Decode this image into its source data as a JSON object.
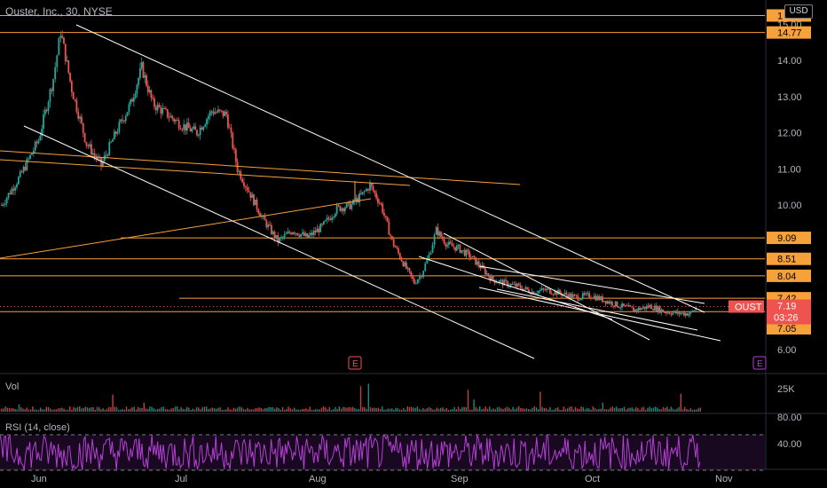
{
  "header": {
    "title": "Ouster, Inc., 30, NYSE",
    "currency": "USD"
  },
  "colors": {
    "bg": "#000000",
    "orange": "#f7a13b",
    "white": "#ffffff",
    "up": "#26a69a",
    "down": "#ef5350",
    "rsi": "#b53fd6",
    "axis": "#b2b5be"
  },
  "chart_data": {
    "type": "candlestick",
    "ticker": "OUST",
    "price_axis": {
      "min": 5.75,
      "max": 15.25,
      "ticks": [
        "15.00",
        "14.00",
        "13.00",
        "12.00",
        "11.00",
        "10.00",
        "6.00"
      ]
    },
    "date_axis": [
      "Jun",
      "Jul",
      "Aug",
      "Sep",
      "Oct",
      "Nov"
    ],
    "price_path": [
      {
        "d": 0,
        "p": 10.0
      },
      {
        "d": 5,
        "p": 10.8
      },
      {
        "d": 10,
        "p": 11.8
      },
      {
        "d": 14,
        "p": 13.5
      },
      {
        "d": 16,
        "p": 14.8
      },
      {
        "d": 19,
        "p": 13.2
      },
      {
        "d": 23,
        "p": 11.7
      },
      {
        "d": 27,
        "p": 11.1
      },
      {
        "d": 31,
        "p": 12.0
      },
      {
        "d": 35,
        "p": 12.8
      },
      {
        "d": 38,
        "p": 13.8
      },
      {
        "d": 41,
        "p": 12.8
      },
      {
        "d": 45,
        "p": 12.5
      },
      {
        "d": 49,
        "p": 12.2
      },
      {
        "d": 53,
        "p": 12.0
      },
      {
        "d": 57,
        "p": 12.6
      },
      {
        "d": 61,
        "p": 12.5
      },
      {
        "d": 64,
        "p": 11.0
      },
      {
        "d": 68,
        "p": 10.2
      },
      {
        "d": 71,
        "p": 9.6
      },
      {
        "d": 75,
        "p": 9.0
      },
      {
        "d": 79,
        "p": 9.3
      },
      {
        "d": 83,
        "p": 9.1
      },
      {
        "d": 87,
        "p": 9.4
      },
      {
        "d": 91,
        "p": 9.9
      },
      {
        "d": 95,
        "p": 10.0
      },
      {
        "d": 98,
        "p": 10.3
      },
      {
        "d": 100,
        "p": 10.55
      },
      {
        "d": 103,
        "p": 10.0
      },
      {
        "d": 106,
        "p": 9.0
      },
      {
        "d": 109,
        "p": 8.4
      },
      {
        "d": 112,
        "p": 7.85
      },
      {
        "d": 114,
        "p": 8.1
      },
      {
        "d": 116,
        "p": 8.6
      },
      {
        "d": 118,
        "p": 9.3
      },
      {
        "d": 121,
        "p": 8.9
      },
      {
        "d": 124,
        "p": 8.8
      },
      {
        "d": 127,
        "p": 8.6
      },
      {
        "d": 130,
        "p": 8.3
      },
      {
        "d": 133,
        "p": 7.95
      },
      {
        "d": 136,
        "p": 7.85
      },
      {
        "d": 140,
        "p": 7.75
      },
      {
        "d": 144,
        "p": 7.6
      },
      {
        "d": 148,
        "p": 7.65
      },
      {
        "d": 152,
        "p": 7.55
      },
      {
        "d": 156,
        "p": 7.45
      },
      {
        "d": 160,
        "p": 7.5
      },
      {
        "d": 164,
        "p": 7.35
      },
      {
        "d": 168,
        "p": 7.2
      },
      {
        "d": 172,
        "p": 7.1
      },
      {
        "d": 176,
        "p": 7.2
      },
      {
        "d": 180,
        "p": 7.05
      },
      {
        "d": 184,
        "p": 7.0
      },
      {
        "d": 187,
        "p": 7.0
      },
      {
        "d": 189,
        "p": 7.19
      }
    ],
    "horizontal_levels": [
      {
        "label": "15.24",
        "price": 15.24,
        "show": "1"
      },
      {
        "label": "14.77",
        "price": 14.77
      },
      {
        "label": "9.09",
        "price": 9.09
      },
      {
        "label": "8.51",
        "price": 8.51
      },
      {
        "label": "8.04",
        "price": 8.04
      },
      {
        "label": "7.42",
        "price": 7.42
      },
      {
        "label": "7.05",
        "price": 7.05
      }
    ],
    "current": {
      "symbol": "OUST",
      "price": "7.19",
      "countdown": "03:26"
    },
    "earnings_markers": [
      "E",
      "E"
    ],
    "volume": {
      "label": "Vol",
      "axis": "25K"
    },
    "rsi": {
      "label": "RSI (14, close)",
      "ticks": [
        "80.00",
        "40.00"
      ]
    }
  }
}
